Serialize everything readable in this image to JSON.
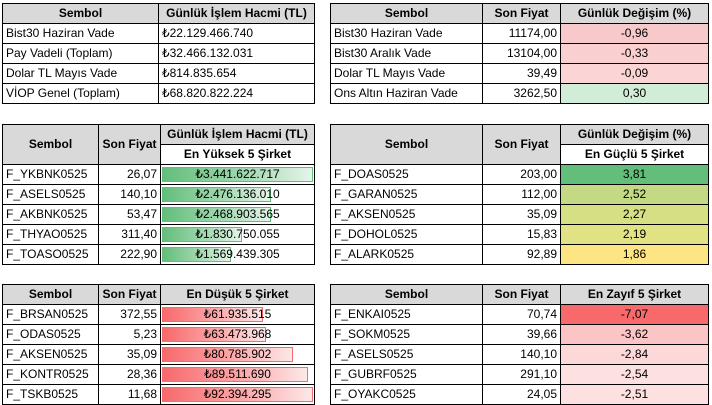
{
  "t1": {
    "headers": [
      "Sembol",
      "Günlük İşlem Hacmi (TL)"
    ],
    "rows": [
      {
        "symbol": "Bist30 Haziran Vade",
        "value": "₺22.129.466.740"
      },
      {
        "symbol": "Pay Vadeli (Toplam)",
        "value": "₺32.466.132.031"
      },
      {
        "symbol": "Dolar TL Mayıs Vade",
        "value": "₺814.835.654"
      },
      {
        "symbol": "VİOP Genel (Toplam)",
        "value": "₺68.820.822.224"
      }
    ]
  },
  "t2": {
    "headers": [
      "Sembol",
      "Son Fiyat",
      "Günlük Değişim (%)"
    ],
    "rows": [
      {
        "symbol": "Bist30 Haziran Vade",
        "price": "11174,00",
        "change": "-0,96",
        "color": "#f8c9ca"
      },
      {
        "symbol": "Bist30 Aralık Vade",
        "price": "13104,00",
        "change": "-0,33",
        "color": "#f9cfd0"
      },
      {
        "symbol": "Dolar TL Mayıs Vade",
        "price": "39,49",
        "change": "-0,09",
        "color": "#fbd5d6"
      },
      {
        "symbol": "Ons Altın Haziran Vade",
        "price": "3262,50",
        "change": "0,30",
        "color": "#d1ecd7"
      }
    ]
  },
  "t3": {
    "headers": [
      "Sembol",
      "Son Fiyat",
      "Günlük İşlem Hacmi (TL)"
    ],
    "subheader": "En Yüksek 5 Şirket",
    "rows": [
      {
        "symbol": "F_YKBNK0525",
        "price": "26,07",
        "volume": "₺3.441.622.717",
        "level": 1.0
      },
      {
        "symbol": "F_ASELS0525",
        "price": "140,10",
        "volume": "₺2.476.136.010",
        "level": 0.72
      },
      {
        "symbol": "F_AKBNK0525",
        "price": "53,47",
        "volume": "₺2.468.903.565",
        "level": 0.72
      },
      {
        "symbol": "F_THYAO0525",
        "price": "311,40",
        "volume": "₺1.830.750.055",
        "level": 0.53
      },
      {
        "symbol": "F_TOASO0525",
        "price": "222,90",
        "volume": "₺1.569.439.305",
        "level": 0.46
      }
    ]
  },
  "t4": {
    "headers": [
      "Sembol",
      "Son Fiyat",
      "Günlük Değişim (%)"
    ],
    "subheader": "En Güçlü 5 Şirket",
    "rows": [
      {
        "symbol": "F_DOAS0525",
        "price": "203,00",
        "change": "3,81",
        "color": "#63be7b"
      },
      {
        "symbol": "F_GARAN0525",
        "price": "112,00",
        "change": "2,52",
        "color": "#c3d984"
      },
      {
        "symbol": "F_AKSEN0525",
        "price": "35,09",
        "change": "2,27",
        "color": "#d6df84"
      },
      {
        "symbol": "F_DOHOL0525",
        "price": "15,83",
        "change": "2,19",
        "color": "#e0e283"
      },
      {
        "symbol": "F_ALARK0525",
        "price": "92,89",
        "change": "1,86",
        "color": "#fee583"
      }
    ]
  },
  "t5": {
    "headers": [
      "Sembol",
      "Son Fiyat",
      "En Düşük 5 Şirket"
    ],
    "rows": [
      {
        "symbol": "F_BRSAN0525",
        "price": "372,55",
        "volume": "₺61.935.515",
        "level": 0.67
      },
      {
        "symbol": "F_ODAS0525",
        "price": "5,23",
        "volume": "₺63.473.968",
        "level": 0.69
      },
      {
        "symbol": "F_AKSEN0525",
        "price": "35,09",
        "volume": "₺80.785.902",
        "level": 0.87
      },
      {
        "symbol": "F_KONTR0525",
        "price": "28,36",
        "volume": "₺89.511.690",
        "level": 0.97
      },
      {
        "symbol": "F_TSKB0525",
        "price": "11,68",
        "volume": "₺92.394.295",
        "level": 1.0
      }
    ]
  },
  "t6": {
    "headers": [
      "Sembol",
      "Son Fiyat",
      "En Zayıf 5 Şirket"
    ],
    "rows": [
      {
        "symbol": "F_ENKAI0525",
        "price": "70,74",
        "change": "-7,07",
        "color": "#f8696b"
      },
      {
        "symbol": "F_SOKM0525",
        "price": "39,66",
        "change": "-3,62",
        "color": "#fbc4c5"
      },
      {
        "symbol": "F_ASELS0525",
        "price": "140,10",
        "change": "-2,84",
        "color": "#fcd8d9"
      },
      {
        "symbol": "F_GUBRF0525",
        "price": "291,10",
        "change": "-2,54",
        "color": "#fde0e0"
      },
      {
        "symbol": "F_OYAKC0525",
        "price": "24,05",
        "change": "-2,51",
        "color": "#fde1e1"
      }
    ]
  }
}
